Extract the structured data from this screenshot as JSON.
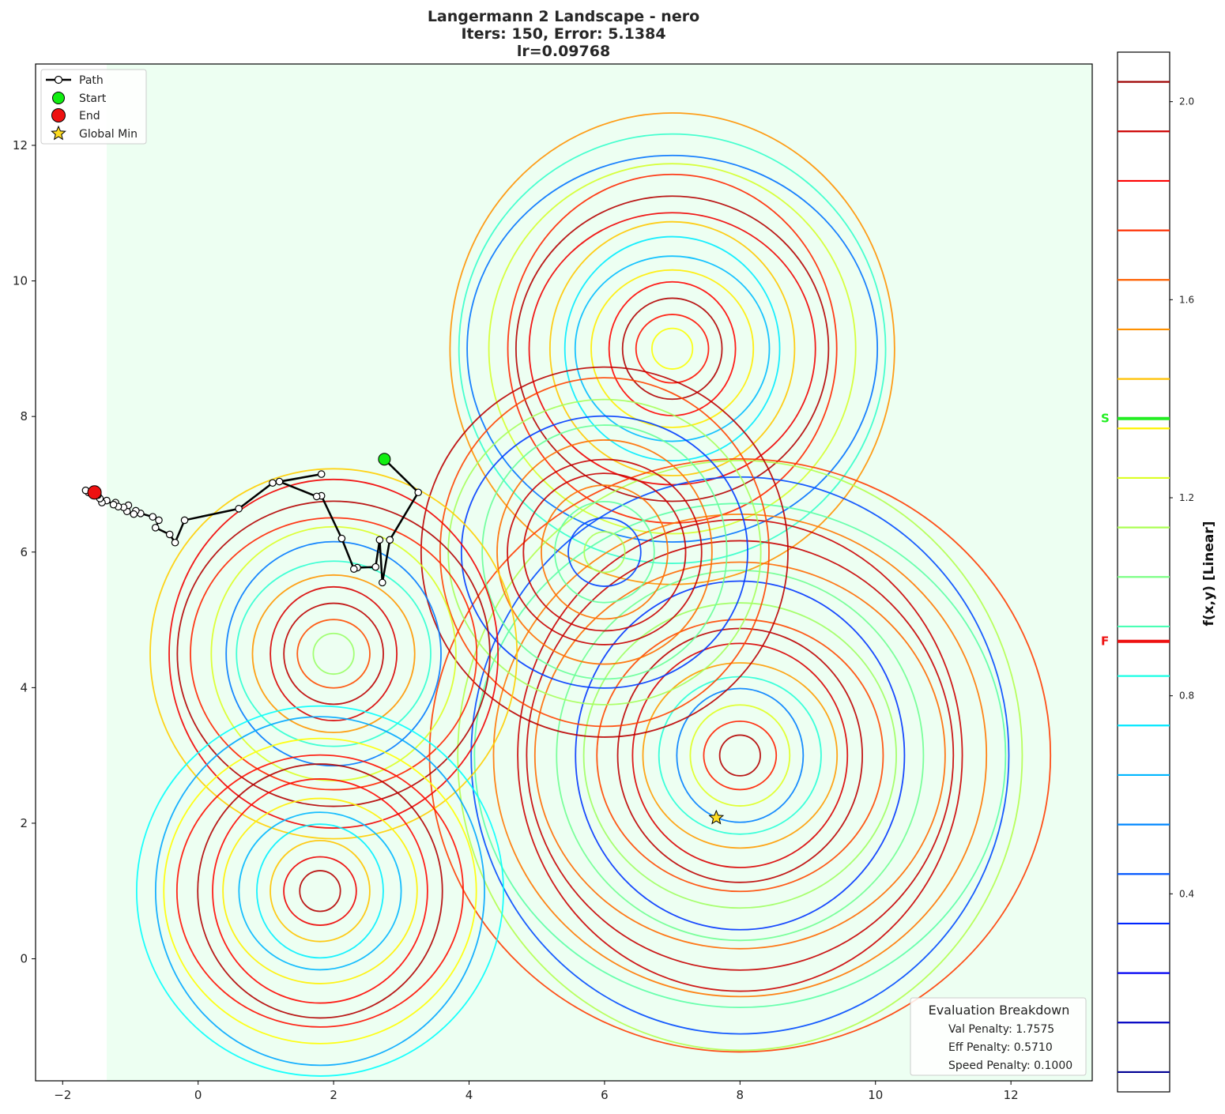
{
  "chart_data": {
    "type": "contour",
    "title_lines": [
      "Langermann 2 Landscape - nero",
      "Iters: 150, Error: 5.1384",
      "lr=0.09768"
    ],
    "xlim": [
      -2.4,
      13.2
    ],
    "ylim": [
      -1.8,
      13.2
    ],
    "x_ticks": [
      -2,
      0,
      2,
      4,
      6,
      8,
      10,
      12
    ],
    "y_ticks": [
      0,
      2,
      4,
      6,
      8,
      10,
      12
    ],
    "x_tick_labels": [
      "−2",
      "0",
      "2",
      "4",
      "6",
      "8",
      "10",
      "12"
    ],
    "y_tick_labels": [
      "0",
      "2",
      "4",
      "6",
      "8",
      "10",
      "12"
    ],
    "domain_x_min": -1.35,
    "peaks": [
      {
        "x": 7.0,
        "y": 9.0
      },
      {
        "x": 8.0,
        "y": 3.0
      },
      {
        "x": 6.0,
        "y": 6.0
      },
      {
        "x": 2.0,
        "y": 4.5
      },
      {
        "x": 1.8,
        "y": 1.0
      }
    ],
    "path": [
      [
        2.75,
        7.37
      ],
      [
        3.25,
        6.88
      ],
      [
        2.83,
        6.18
      ],
      [
        2.72,
        5.55
      ],
      [
        2.68,
        6.18
      ],
      [
        2.62,
        5.78
      ],
      [
        2.35,
        5.77
      ],
      [
        2.3,
        5.75
      ],
      [
        2.12,
        6.2
      ],
      [
        1.82,
        6.83
      ],
      [
        1.75,
        6.82
      ],
      [
        1.2,
        7.04
      ],
      [
        1.82,
        7.15
      ],
      [
        1.1,
        7.02
      ],
      [
        0.6,
        6.64
      ],
      [
        -0.2,
        6.47
      ],
      [
        -0.34,
        6.14
      ],
      [
        -0.42,
        6.26
      ],
      [
        -0.63,
        6.36
      ],
      [
        -0.58,
        6.47
      ],
      [
        -0.67,
        6.52
      ],
      [
        -0.85,
        6.57
      ],
      [
        -0.92,
        6.61
      ],
      [
        -0.95,
        6.56
      ],
      [
        -1.05,
        6.6
      ],
      [
        -1.03,
        6.69
      ],
      [
        -1.1,
        6.66
      ],
      [
        -1.22,
        6.73
      ],
      [
        -1.18,
        6.67
      ],
      [
        -1.25,
        6.7
      ],
      [
        -1.35,
        6.76
      ],
      [
        -1.42,
        6.73
      ],
      [
        -1.45,
        6.79
      ],
      [
        -1.48,
        6.84
      ],
      [
        -1.55,
        6.85
      ],
      [
        -1.62,
        6.88
      ],
      [
        -1.66,
        6.91
      ],
      [
        -1.53,
        6.88
      ]
    ],
    "start": {
      "x": 2.75,
      "y": 7.37
    },
    "end": {
      "x": -1.53,
      "y": 6.88
    },
    "global_min": {
      "x": 7.65,
      "y": 2.08
    },
    "legend": {
      "position": "upper left",
      "entries": [
        "Path",
        "Start",
        "End",
        "Global Min"
      ]
    },
    "colorbar": {
      "label": "f(x,y) [Linear]",
      "range": [
        0.0,
        2.1
      ],
      "ticks": [
        0.4,
        0.8,
        1.2,
        1.6,
        2.0
      ],
      "tick_labels": [
        "0.4",
        "0.8",
        "1.2",
        "1.6",
        "2.0"
      ],
      "levels": [
        0.04,
        0.14,
        0.24,
        0.34,
        0.44,
        0.54,
        0.64,
        0.74,
        0.84,
        0.94,
        1.04,
        1.14,
        1.24,
        1.34,
        1.44,
        1.54,
        1.64,
        1.74,
        1.84,
        1.94,
        2.04
      ],
      "markers": [
        {
          "label": "S",
          "value": 1.36,
          "color": "#22ee22"
        },
        {
          "label": "F",
          "value": 0.91,
          "color": "#ee1111"
        }
      ]
    },
    "evaluation_breakdown": {
      "title": "Evaluation Breakdown",
      "rows": [
        "Val Penalty: 1.7575",
        "Eff Penalty: 0.5710",
        "Speed Penalty: 0.1000"
      ]
    }
  }
}
